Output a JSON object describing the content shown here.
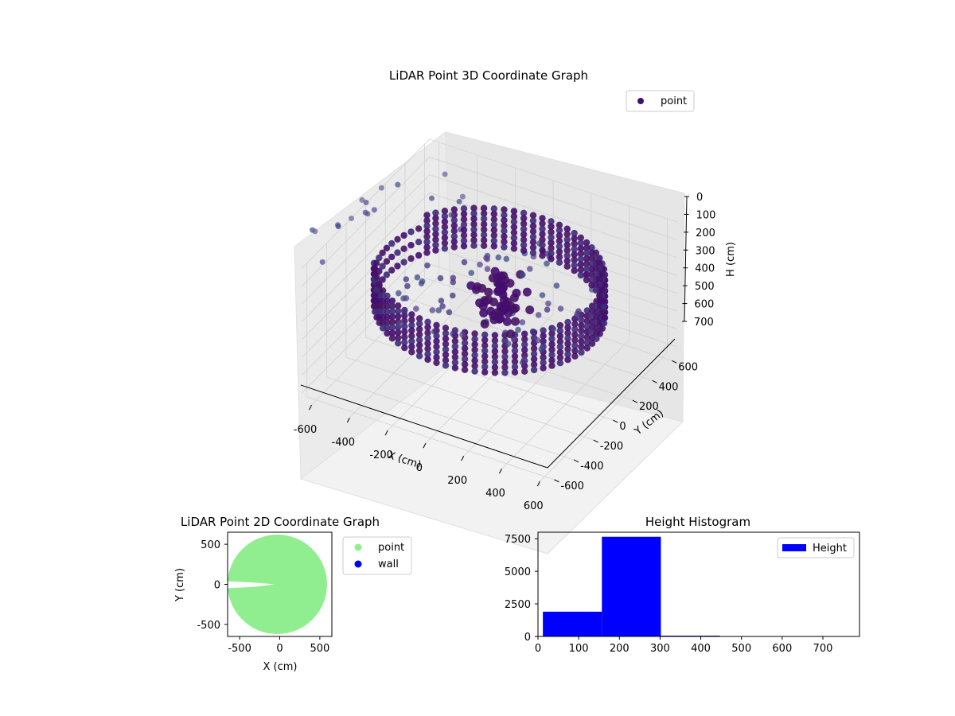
{
  "chart_data": [
    {
      "type": "scatter",
      "title": "LiDAR Point 3D Coordinate Graph",
      "xlabel": "X (cm)",
      "ylabel": "Y (cm)",
      "zlabel": "H (cm)",
      "xlim": [
        -650,
        650
      ],
      "ylim": [
        -650,
        650
      ],
      "zlim": [
        0,
        750
      ],
      "z_inverted": true,
      "x_ticks": [
        "-600",
        "-400",
        "-200",
        "0",
        "200",
        "400",
        "600"
      ],
      "y_ticks": [
        "-600",
        "-400",
        "-200",
        "0",
        "200",
        "400",
        "600"
      ],
      "z_ticks": [
        "0",
        "100",
        "200",
        "300",
        "400",
        "500",
        "600",
        "700"
      ],
      "legend": [
        "point"
      ],
      "legend_position": "upper right",
      "grid": true,
      "colormap": "viridis",
      "series": [
        {
          "name": "point",
          "shape": "ring",
          "ring_radius_cm": 540,
          "ring_height_cm": [
            150,
            360
          ],
          "inner_cluster_radius_cm": 150,
          "description_scale": "approximately 9500 points"
        }
      ],
      "colors": {
        "marker": "#440d6f",
        "pane": "#f2f2f2",
        "grid": "#d0d0d0"
      }
    },
    {
      "type": "scatter",
      "title": "LiDAR Point 2D Coordinate Graph",
      "xlabel": "X (cm)",
      "ylabel": "Y (cm)",
      "xlim": [
        -650,
        650
      ],
      "ylim": [
        -650,
        650
      ],
      "x_ticks": [
        "-500",
        "0",
        "500"
      ],
      "y_ticks": [
        "-500",
        "0",
        "500"
      ],
      "legend": [
        "point",
        "wall"
      ],
      "legend_position": "outside upper right",
      "series": [
        {
          "name": "point",
          "color": "#90ee90",
          "filled_disc_radius_cm": 620
        },
        {
          "name": "wall",
          "color": "#0000ff",
          "values": []
        }
      ]
    },
    {
      "type": "bar",
      "title": "Height Histogram",
      "xlabel": "",
      "ylabel": "",
      "xlim": [
        0,
        790
      ],
      "ylim": [
        0,
        8000
      ],
      "x_ticks": [
        "0",
        "100",
        "200",
        "300",
        "400",
        "500",
        "600",
        "700"
      ],
      "y_ticks": [
        "0",
        "2500",
        "5000",
        "7500"
      ],
      "legend": [
        "Height"
      ],
      "legend_position": "upper right",
      "color": "#0000ff",
      "bins": [
        {
          "from": 12,
          "to": 157,
          "count": 1900
        },
        {
          "from": 157,
          "to": 302,
          "count": 7650
        },
        {
          "from": 302,
          "to": 447,
          "count": 60
        },
        {
          "from": 447,
          "to": 592,
          "count": 8
        },
        {
          "from": 592,
          "to": 737,
          "count": 3
        }
      ]
    }
  ]
}
